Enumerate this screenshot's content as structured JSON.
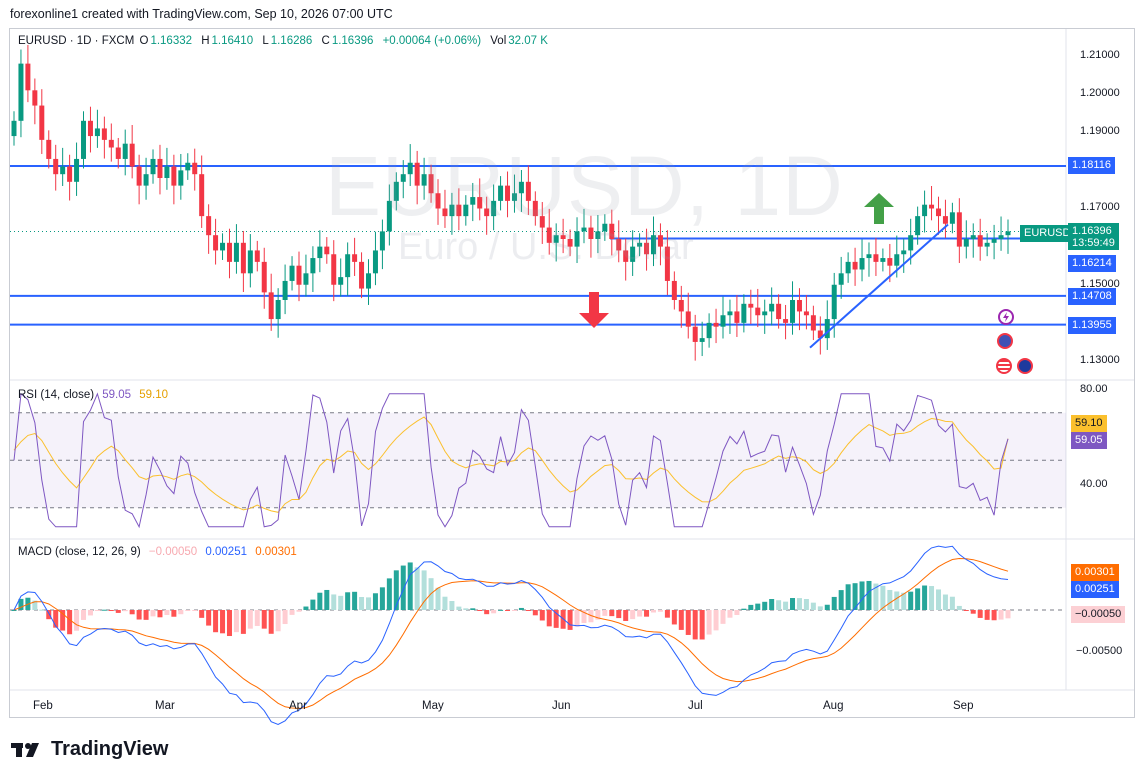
{
  "attribution": "forexonline1 created with TradingView.com, Sep 10, 2026 07:00 UTC",
  "brand": "TradingView",
  "watermark": {
    "symbol": "EURUSD, 1D",
    "description": "Euro / U.S. Dollar"
  },
  "header": {
    "symbol": "EURUSD · 1D · FXCM",
    "o_label": "O",
    "o": "1.16332",
    "h_label": "H",
    "h": "1.16410",
    "l_label": "L",
    "l": "1.16286",
    "c_label": "C",
    "c": "1.16396",
    "change": "+0.00064 (+0.06%)",
    "vol_label": "Vol",
    "vol": "32.07 K"
  },
  "price_tags": {
    "symbol": "EURUSD",
    "last": "1.16396",
    "countdown": "13:59:49",
    "levels": [
      "1.18116",
      "1.16214",
      "1.14708",
      "1.13955"
    ]
  },
  "rsi_label": {
    "name": "RSI (14, close)",
    "rsi": "59.05",
    "ma": "59.10"
  },
  "macd_label": {
    "name": "MACD (close, 12, 26, 9)",
    "hist": "−0.00050",
    "macd": "0.00251",
    "signal": "0.00301"
  },
  "colors": {
    "up": "#089981",
    "down": "#f23645",
    "level": "#2962ff",
    "rsi": "#7e57c2",
    "rsi_ma": "#fbc02d",
    "macd": "#2962ff",
    "signal": "#ff6d00"
  },
  "icons": [
    "lightning-icon",
    "globe-flag-icon",
    "us-flag-icon",
    "eu-flag-icon",
    "arrow-up-icon",
    "arrow-down-icon"
  ],
  "chart_data": [
    {
      "type": "candlestick",
      "title": "EURUSD, 1D",
      "ylim": [
        1.125,
        1.2125
      ],
      "y_ticks": [
        "1.21000",
        "1.20000",
        "1.19000",
        "1.18116",
        "1.17000",
        "1.16396",
        "1.16214",
        "1.15000",
        "1.14708",
        "1.13955",
        "1.13000"
      ],
      "x_labels": [
        "Feb",
        "Mar",
        "Apr",
        "May",
        "Jun",
        "Jul",
        "Aug",
        "Sep"
      ],
      "horizontal_levels": [
        1.18116,
        1.16214,
        1.14708,
        1.13955
      ],
      "trendline": {
        "from_price": 1.1335,
        "to_price": 1.1658
      },
      "closes": [
        1.193,
        1.208,
        1.201,
        1.197,
        1.188,
        1.183,
        1.179,
        1.181,
        1.177,
        1.183,
        1.193,
        1.189,
        1.191,
        1.188,
        1.186,
        1.183,
        1.187,
        1.181,
        1.176,
        1.179,
        1.183,
        1.178,
        1.181,
        1.176,
        1.18,
        1.182,
        1.179,
        1.168,
        1.163,
        1.159,
        1.161,
        1.156,
        1.161,
        1.153,
        1.159,
        1.156,
        1.148,
        1.141,
        1.146,
        1.151,
        1.155,
        1.15,
        1.153,
        1.157,
        1.16,
        1.158,
        1.15,
        1.152,
        1.158,
        1.156,
        1.149,
        1.153,
        1.159,
        1.164,
        1.172,
        1.177,
        1.179,
        1.182,
        1.176,
        1.179,
        1.174,
        1.17,
        1.168,
        1.171,
        1.168,
        1.171,
        1.173,
        1.17,
        1.168,
        1.172,
        1.176,
        1.172,
        1.174,
        1.177,
        1.172,
        1.168,
        1.165,
        1.161,
        1.163,
        1.162,
        1.16,
        1.164,
        1.165,
        1.162,
        1.164,
        1.166,
        1.162,
        1.159,
        1.156,
        1.16,
        1.161,
        1.158,
        1.163,
        1.16,
        1.151,
        1.146,
        1.143,
        1.139,
        1.135,
        1.136,
        1.14,
        1.139,
        1.142,
        1.143,
        1.14,
        1.145,
        1.144,
        1.142,
        1.143,
        1.145,
        1.141,
        1.14,
        1.146,
        1.143,
        1.142,
        1.138,
        1.136,
        1.141,
        1.15,
        1.153,
        1.156,
        1.154,
        1.157,
        1.158,
        1.156,
        1.157,
        1.155,
        1.158,
        1.159,
        1.163,
        1.168,
        1.171,
        1.17,
        1.168,
        1.166,
        1.169,
        1.16,
        1.162,
        1.163,
        1.16,
        1.161,
        1.162,
        1.163,
        1.164
      ]
    },
    {
      "type": "line",
      "title": "RSI (14, close)",
      "ylim": [
        25,
        80
      ],
      "y_ticks": [
        "80.00",
        "40.00"
      ],
      "bands": [
        70,
        50,
        30
      ],
      "series": [
        {
          "name": "RSI",
          "last": 59.05
        },
        {
          "name": "RSI MA",
          "last": 59.1
        }
      ]
    },
    {
      "type": "bar",
      "title": "MACD (close, 12, 26, 9)",
      "ylim": [
        -0.0072,
        0.0055
      ],
      "y_ticks": [
        "−0.00050",
        "−0.00500"
      ],
      "series": [
        {
          "name": "Histogram",
          "last": -0.0005
        },
        {
          "name": "MACD",
          "last": 0.00251
        },
        {
          "name": "Signal",
          "last": 0.00301
        }
      ]
    }
  ]
}
